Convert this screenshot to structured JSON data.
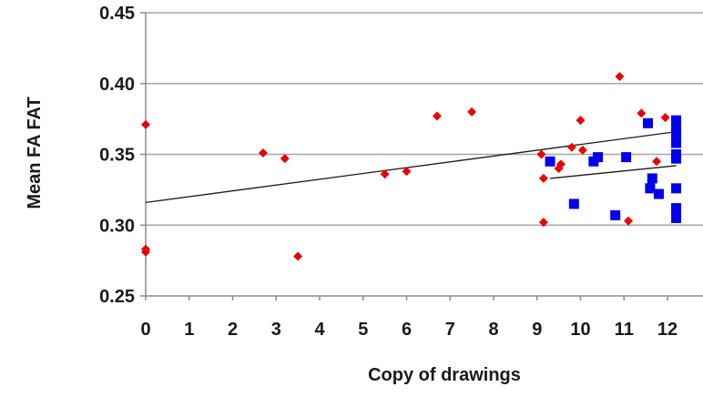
{
  "chart_data": {
    "type": "scatter",
    "title": "",
    "xlabel": "Copy of drawings",
    "ylabel": "Mean FA FAT",
    "xlim": [
      0,
      13
    ],
    "ylim": [
      0.25,
      0.45
    ],
    "x_ticks": [
      "0",
      "1",
      "2",
      "3",
      "4",
      "5",
      "6",
      "7",
      "8",
      "9",
      "10",
      "11",
      "12"
    ],
    "y_ticks": [
      "0.45",
      "0.40",
      "0.35",
      "0.30",
      "0.25"
    ],
    "y_tick_values": [
      0.45,
      0.4,
      0.35,
      0.3,
      0.25
    ],
    "grid": "horizontal",
    "legend": "none",
    "series": [
      {
        "marker": "diamond",
        "color": "#ee0000",
        "points": [
          [
            0,
            0.371
          ],
          [
            0,
            0.283
          ],
          [
            0,
            0.281
          ],
          [
            2.7,
            0.351
          ],
          [
            3.2,
            0.347
          ],
          [
            3.5,
            0.278
          ],
          [
            5.5,
            0.336
          ],
          [
            6,
            0.338
          ],
          [
            6.7,
            0.377
          ],
          [
            7.5,
            0.38
          ],
          [
            9.1,
            0.35
          ],
          [
            9.15,
            0.333
          ],
          [
            9.15,
            0.302
          ],
          [
            9.5,
            0.34
          ],
          [
            9.55,
            0.343
          ],
          [
            9.8,
            0.355
          ],
          [
            10,
            0.374
          ],
          [
            10.05,
            0.353
          ],
          [
            10.9,
            0.405
          ],
          [
            11.1,
            0.303
          ],
          [
            11.4,
            0.379
          ],
          [
            11.75,
            0.345
          ],
          [
            11.95,
            0.376
          ]
        ]
      },
      {
        "marker": "square",
        "color": "#0000ee",
        "points": [
          [
            9.3,
            0.345
          ],
          [
            9.85,
            0.315
          ],
          [
            10.3,
            0.345
          ],
          [
            10.4,
            0.348
          ],
          [
            10.8,
            0.307
          ],
          [
            11.05,
            0.348
          ],
          [
            11.55,
            0.372
          ],
          [
            11.6,
            0.326
          ],
          [
            11.65,
            0.333
          ],
          [
            11.8,
            0.322
          ],
          [
            12.2,
            0.374
          ],
          [
            12.2,
            0.37
          ],
          [
            12.2,
            0.365
          ],
          [
            12.2,
            0.358
          ],
          [
            12.2,
            0.35
          ],
          [
            12.2,
            0.347
          ],
          [
            12.2,
            0.326
          ],
          [
            12.2,
            0.312
          ],
          [
            12.2,
            0.305
          ]
        ]
      }
    ],
    "trendlines": [
      {
        "color": "#1a1a1a",
        "x": [
          0,
          12.2
        ],
        "y": [
          0.316,
          0.366
        ]
      },
      {
        "color": "#1a1a1a",
        "x": [
          9.3,
          12.2
        ],
        "y": [
          0.333,
          0.342
        ]
      }
    ]
  }
}
